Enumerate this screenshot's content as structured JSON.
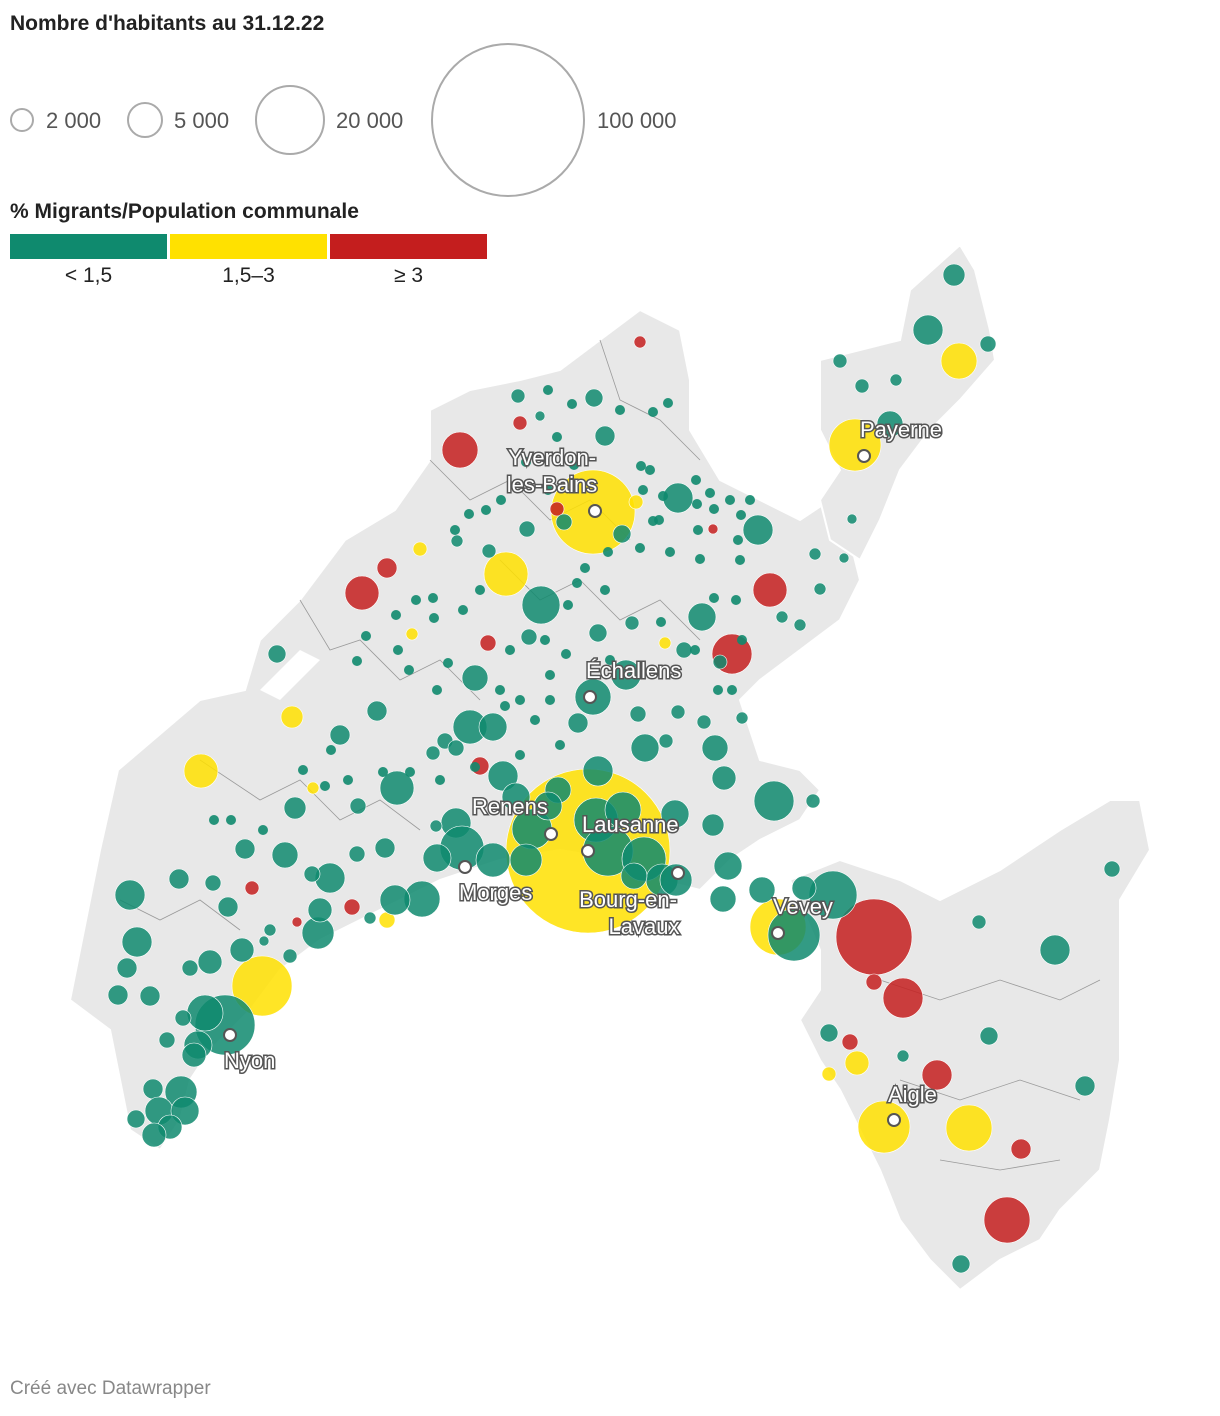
{
  "title": "Nombre d'habitants au 31.12.22",
  "size_legend": {
    "items": [
      {
        "label": "2 000",
        "value": 2000
      },
      {
        "label": "5 000",
        "value": 5000
      },
      {
        "label": "20 000",
        "value": 20000
      },
      {
        "label": "100 000",
        "value": 100000
      }
    ]
  },
  "color_legend": {
    "title": "% Migrants/Population communale",
    "bins": [
      {
        "label": "< 1,5",
        "color": "#0f8a6e"
      },
      {
        "label": "1,5–3",
        "color": "#ffe100"
      },
      {
        "label": "≥ 3",
        "color": "#c41e1e"
      }
    ]
  },
  "cities": [
    {
      "name": "Yverdon-",
      "name2": "les-Bains"
    },
    {
      "name": "Payerne"
    },
    {
      "name": "Échallens"
    },
    {
      "name": "Renens"
    },
    {
      "name": "Lausanne"
    },
    {
      "name": "Morges"
    },
    {
      "name": "Bourg-en-",
      "name2": "Lavaux"
    },
    {
      "name": "Vevey"
    },
    {
      "name": "Nyon"
    },
    {
      "name": "Aigle"
    }
  ],
  "footer": "Créé avec Datawrapper"
}
